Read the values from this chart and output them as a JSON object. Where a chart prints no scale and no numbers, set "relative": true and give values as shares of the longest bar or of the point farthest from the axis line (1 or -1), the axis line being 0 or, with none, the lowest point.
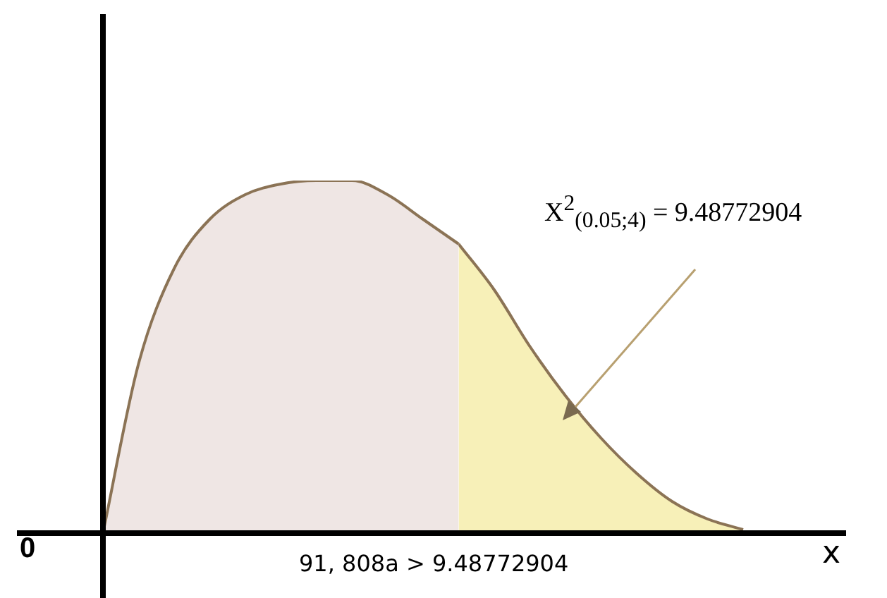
{
  "chart_data": {
    "type": "area",
    "relative": true,
    "legend": false,
    "grid": false,
    "xlabel": "x",
    "categories": [
      null,
      null,
      null,
      null,
      null,
      null,
      null,
      null,
      null,
      null,
      null,
      null,
      null,
      null,
      null,
      null,
      null,
      null,
      null
    ],
    "series": [
      {
        "color": "#efe6e4",
        "values": [
          0,
          0.48,
          0.75,
          0.89,
          0.96,
          0.99,
          1,
          1,
          0.96,
          0.89,
          0.82,
          null,
          null,
          null,
          null,
          null,
          null,
          null,
          null
        ]
      },
      {
        "color": "#f7f0b8",
        "values": [
          null,
          null,
          null,
          null,
          null,
          null,
          null,
          null,
          null,
          null,
          0.82,
          0.69,
          0.53,
          0.39,
          0.27,
          0.17,
          0.09,
          0.04,
          0.01
        ]
      }
    ],
    "annotations": [
      "X$^{2}$$_{(0.05;4)}$ = 9.48772904",
      "0",
      "91, 808a > 9.48772904"
    ]
  }
}
